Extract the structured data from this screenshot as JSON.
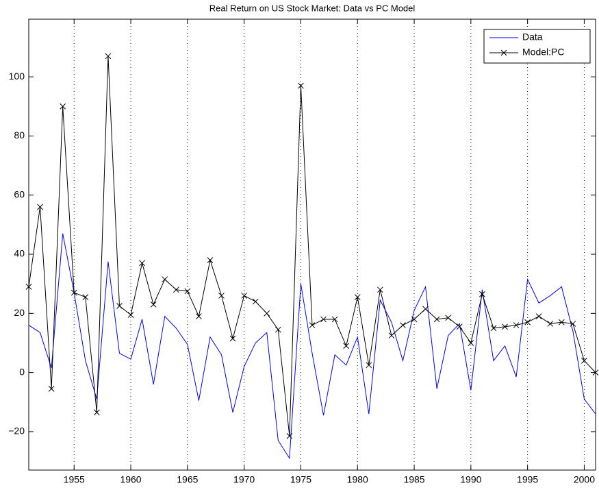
{
  "chart_data": {
    "type": "line",
    "title": "Real Return on US Stock Market: Data vs PC Model",
    "x": [
      1951,
      1952,
      1953,
      1954,
      1955,
      1956,
      1957,
      1958,
      1959,
      1960,
      1961,
      1962,
      1963,
      1964,
      1965,
      1966,
      1967,
      1968,
      1969,
      1970,
      1971,
      1972,
      1973,
      1974,
      1975,
      1976,
      1977,
      1978,
      1979,
      1980,
      1981,
      1982,
      1983,
      1984,
      1985,
      1986,
      1987,
      1988,
      1989,
      1990,
      1991,
      1992,
      1993,
      1994,
      1995,
      1996,
      1997,
      1998,
      1999,
      2000,
      2001
    ],
    "series": [
      {
        "name": "Data",
        "color": "#0000ff",
        "marker": "none",
        "values": [
          16,
          13.5,
          1.5,
          47,
          27,
          4,
          -9,
          37.5,
          6.5,
          4.5,
          18,
          -4,
          19,
          15,
          9.5,
          -9.5,
          12,
          6,
          -13.5,
          2,
          10,
          13.5,
          -23,
          -29,
          30,
          6.5,
          -14.5,
          6,
          2.5,
          12,
          -14,
          24.5,
          17,
          4,
          21,
          29,
          -5.5,
          12.5,
          16.5,
          -6,
          28,
          4,
          9,
          -1.5,
          31.5,
          23.5,
          26,
          29,
          14,
          -9,
          -14
        ]
      },
      {
        "name": "Model:PC",
        "color": "#000000",
        "marker": "x",
        "values": [
          29,
          56,
          -5.5,
          90,
          27,
          25.5,
          -13.5,
          107,
          22.5,
          19.5,
          37,
          23,
          31.5,
          28,
          27.5,
          19,
          38,
          26,
          11.5,
          26,
          24,
          20,
          14.5,
          -21.5,
          97,
          16,
          18,
          18,
          9,
          25.5,
          2.5,
          28,
          12.5,
          16,
          18,
          21.5,
          18,
          18.5,
          15.5,
          10,
          26.5,
          15,
          15.5,
          16,
          17,
          19,
          16.5,
          17,
          16.5,
          4,
          0
        ]
      }
    ],
    "xlim": [
      1951,
      2001
    ],
    "xticks": [
      1955,
      1960,
      1965,
      1970,
      1975,
      1980,
      1985,
      1990,
      1995,
      2000
    ],
    "ylim": [
      -33,
      119.5
    ],
    "yticks": [
      {
        "value": -20,
        "label": "−20"
      },
      0,
      20,
      40,
      60,
      80,
      100
    ],
    "grid": "x",
    "legend": "upper right"
  }
}
